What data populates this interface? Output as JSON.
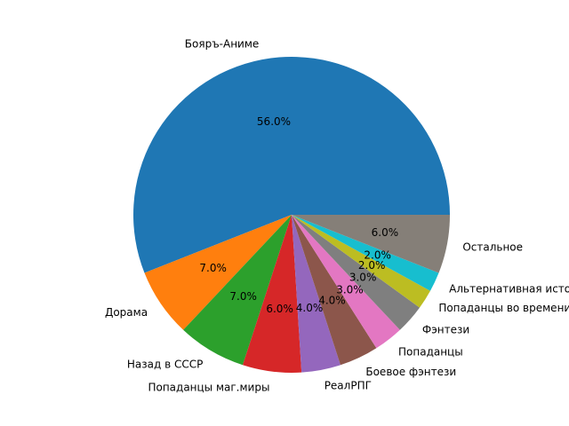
{
  "chart_data": {
    "type": "pie",
    "title": "",
    "start_angle_deg": 0,
    "direction": "counterclockwise",
    "slices": [
      {
        "label": "Бояръ-Аниме",
        "value": 56.0,
        "pct_text": "56.0%",
        "color": "#1f77b4"
      },
      {
        "label": "Дорама",
        "value": 7.0,
        "pct_text": "7.0%",
        "color": "#ff7f0e"
      },
      {
        "label": "Назад в СССР",
        "value": 7.0,
        "pct_text": "7.0%",
        "color": "#2ca02c"
      },
      {
        "label": "Попаданцы маг.миры",
        "value": 6.0,
        "pct_text": "6.0%",
        "color": "#d62728"
      },
      {
        "label": "РеалРПГ",
        "value": 4.0,
        "pct_text": "4.0%",
        "color": "#9467bd"
      },
      {
        "label": "Боевое фэнтези",
        "value": 4.0,
        "pct_text": "4.0%",
        "color": "#8c564b"
      },
      {
        "label": "Попаданцы",
        "value": 3.0,
        "pct_text": "3.0%",
        "color": "#e377c2"
      },
      {
        "label": "Фэнтези",
        "value": 3.0,
        "pct_text": "3.0%",
        "color": "#7f7f7f"
      },
      {
        "label": "Попаданцы во времени",
        "value": 2.0,
        "pct_text": "2.0%",
        "color": "#bcbd22"
      },
      {
        "label": "Альтернативная история",
        "value": 2.0,
        "pct_text": "2.0%",
        "color": "#17becf"
      },
      {
        "label": "Остальное",
        "value": 6.0,
        "pct_text": "6.0%",
        "color": "#857f78"
      }
    ]
  }
}
